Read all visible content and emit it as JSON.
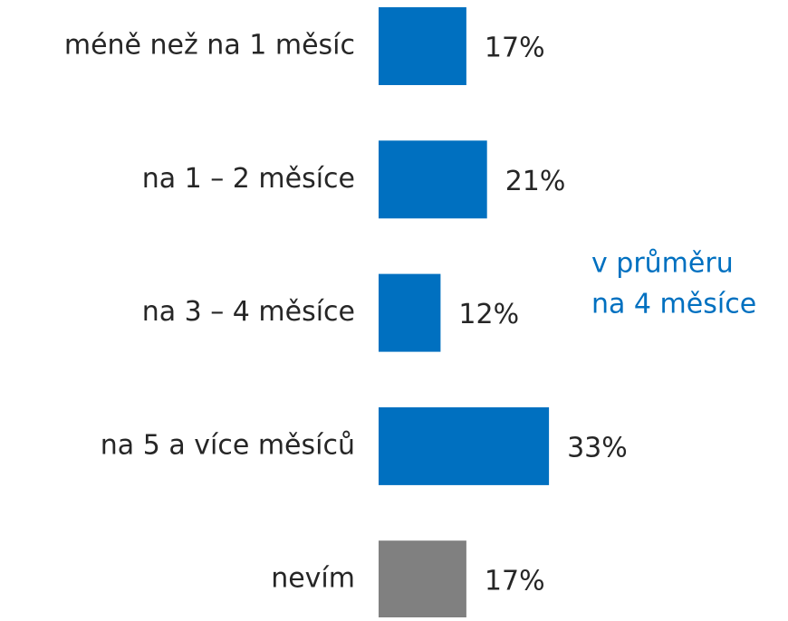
{
  "chart_data": {
    "type": "bar",
    "orientation": "horizontal",
    "categories": [
      "méně než na 1 měsíc",
      "na 1 – 2 měsíce",
      "na 3 – 4 měsíce",
      "na 5 a více měsíců",
      "nevím"
    ],
    "values": [
      17,
      21,
      12,
      33,
      17
    ],
    "value_labels": [
      "17%",
      "21%",
      "12%",
      "33%",
      "17%"
    ],
    "colors": [
      "#0070c0",
      "#0070c0",
      "#0070c0",
      "#0070c0",
      "#808080"
    ],
    "annotation": [
      "v průměru",
      "na 4 měsíce"
    ],
    "annotation_color": "#0070c0"
  }
}
